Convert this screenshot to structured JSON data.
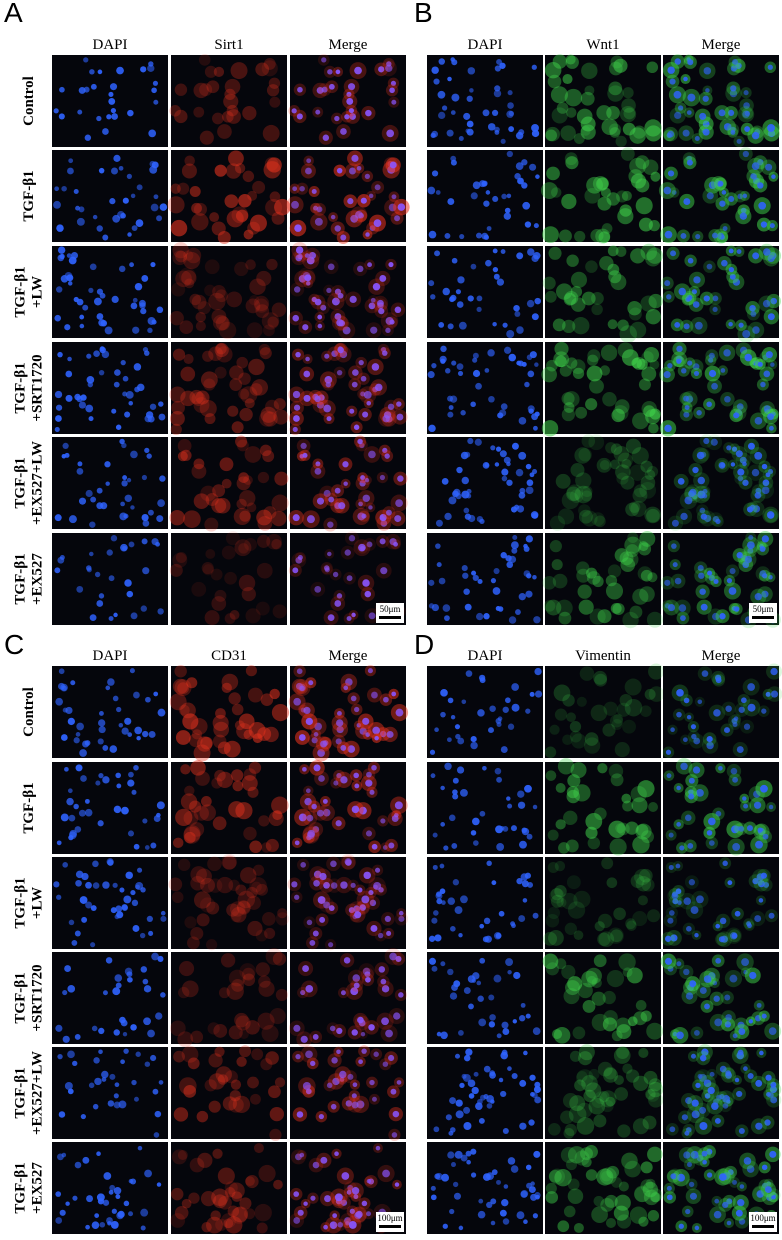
{
  "panels": [
    {
      "letter": "A",
      "columns": [
        "DAPI",
        "Sirt1",
        "Merge"
      ],
      "rows": [
        [
          "Control"
        ],
        [
          "TGF-β1"
        ],
        [
          "TGF-β1",
          "+LW"
        ],
        [
          "TGF-β1",
          "+SRT1720"
        ],
        [
          "TGF-β1",
          "+EX527+LW"
        ],
        [
          "TGF-β1",
          "+EX527"
        ]
      ],
      "scale_bar": "50μm"
    },
    {
      "letter": "B",
      "columns": [
        "DAPI",
        "Wnt1",
        "Merge"
      ],
      "scale_bar": "50μm"
    },
    {
      "letter": "C",
      "columns": [
        "DAPI",
        "CD31",
        "Merge"
      ],
      "rows": [
        [
          "Control"
        ],
        [
          "TGF-β1"
        ],
        [
          "TGF-β1",
          "+LW"
        ],
        [
          "TGF-β1",
          "+SRT1720"
        ],
        [
          "TGF-β1",
          "+EX527+LW"
        ],
        [
          "TGF-β1",
          "+EX527"
        ]
      ],
      "scale_bar": "100μm"
    },
    {
      "letter": "D",
      "columns": [
        "DAPI",
        "Vimentin",
        "Merge"
      ],
      "scale_bar": "100μm"
    }
  ]
}
